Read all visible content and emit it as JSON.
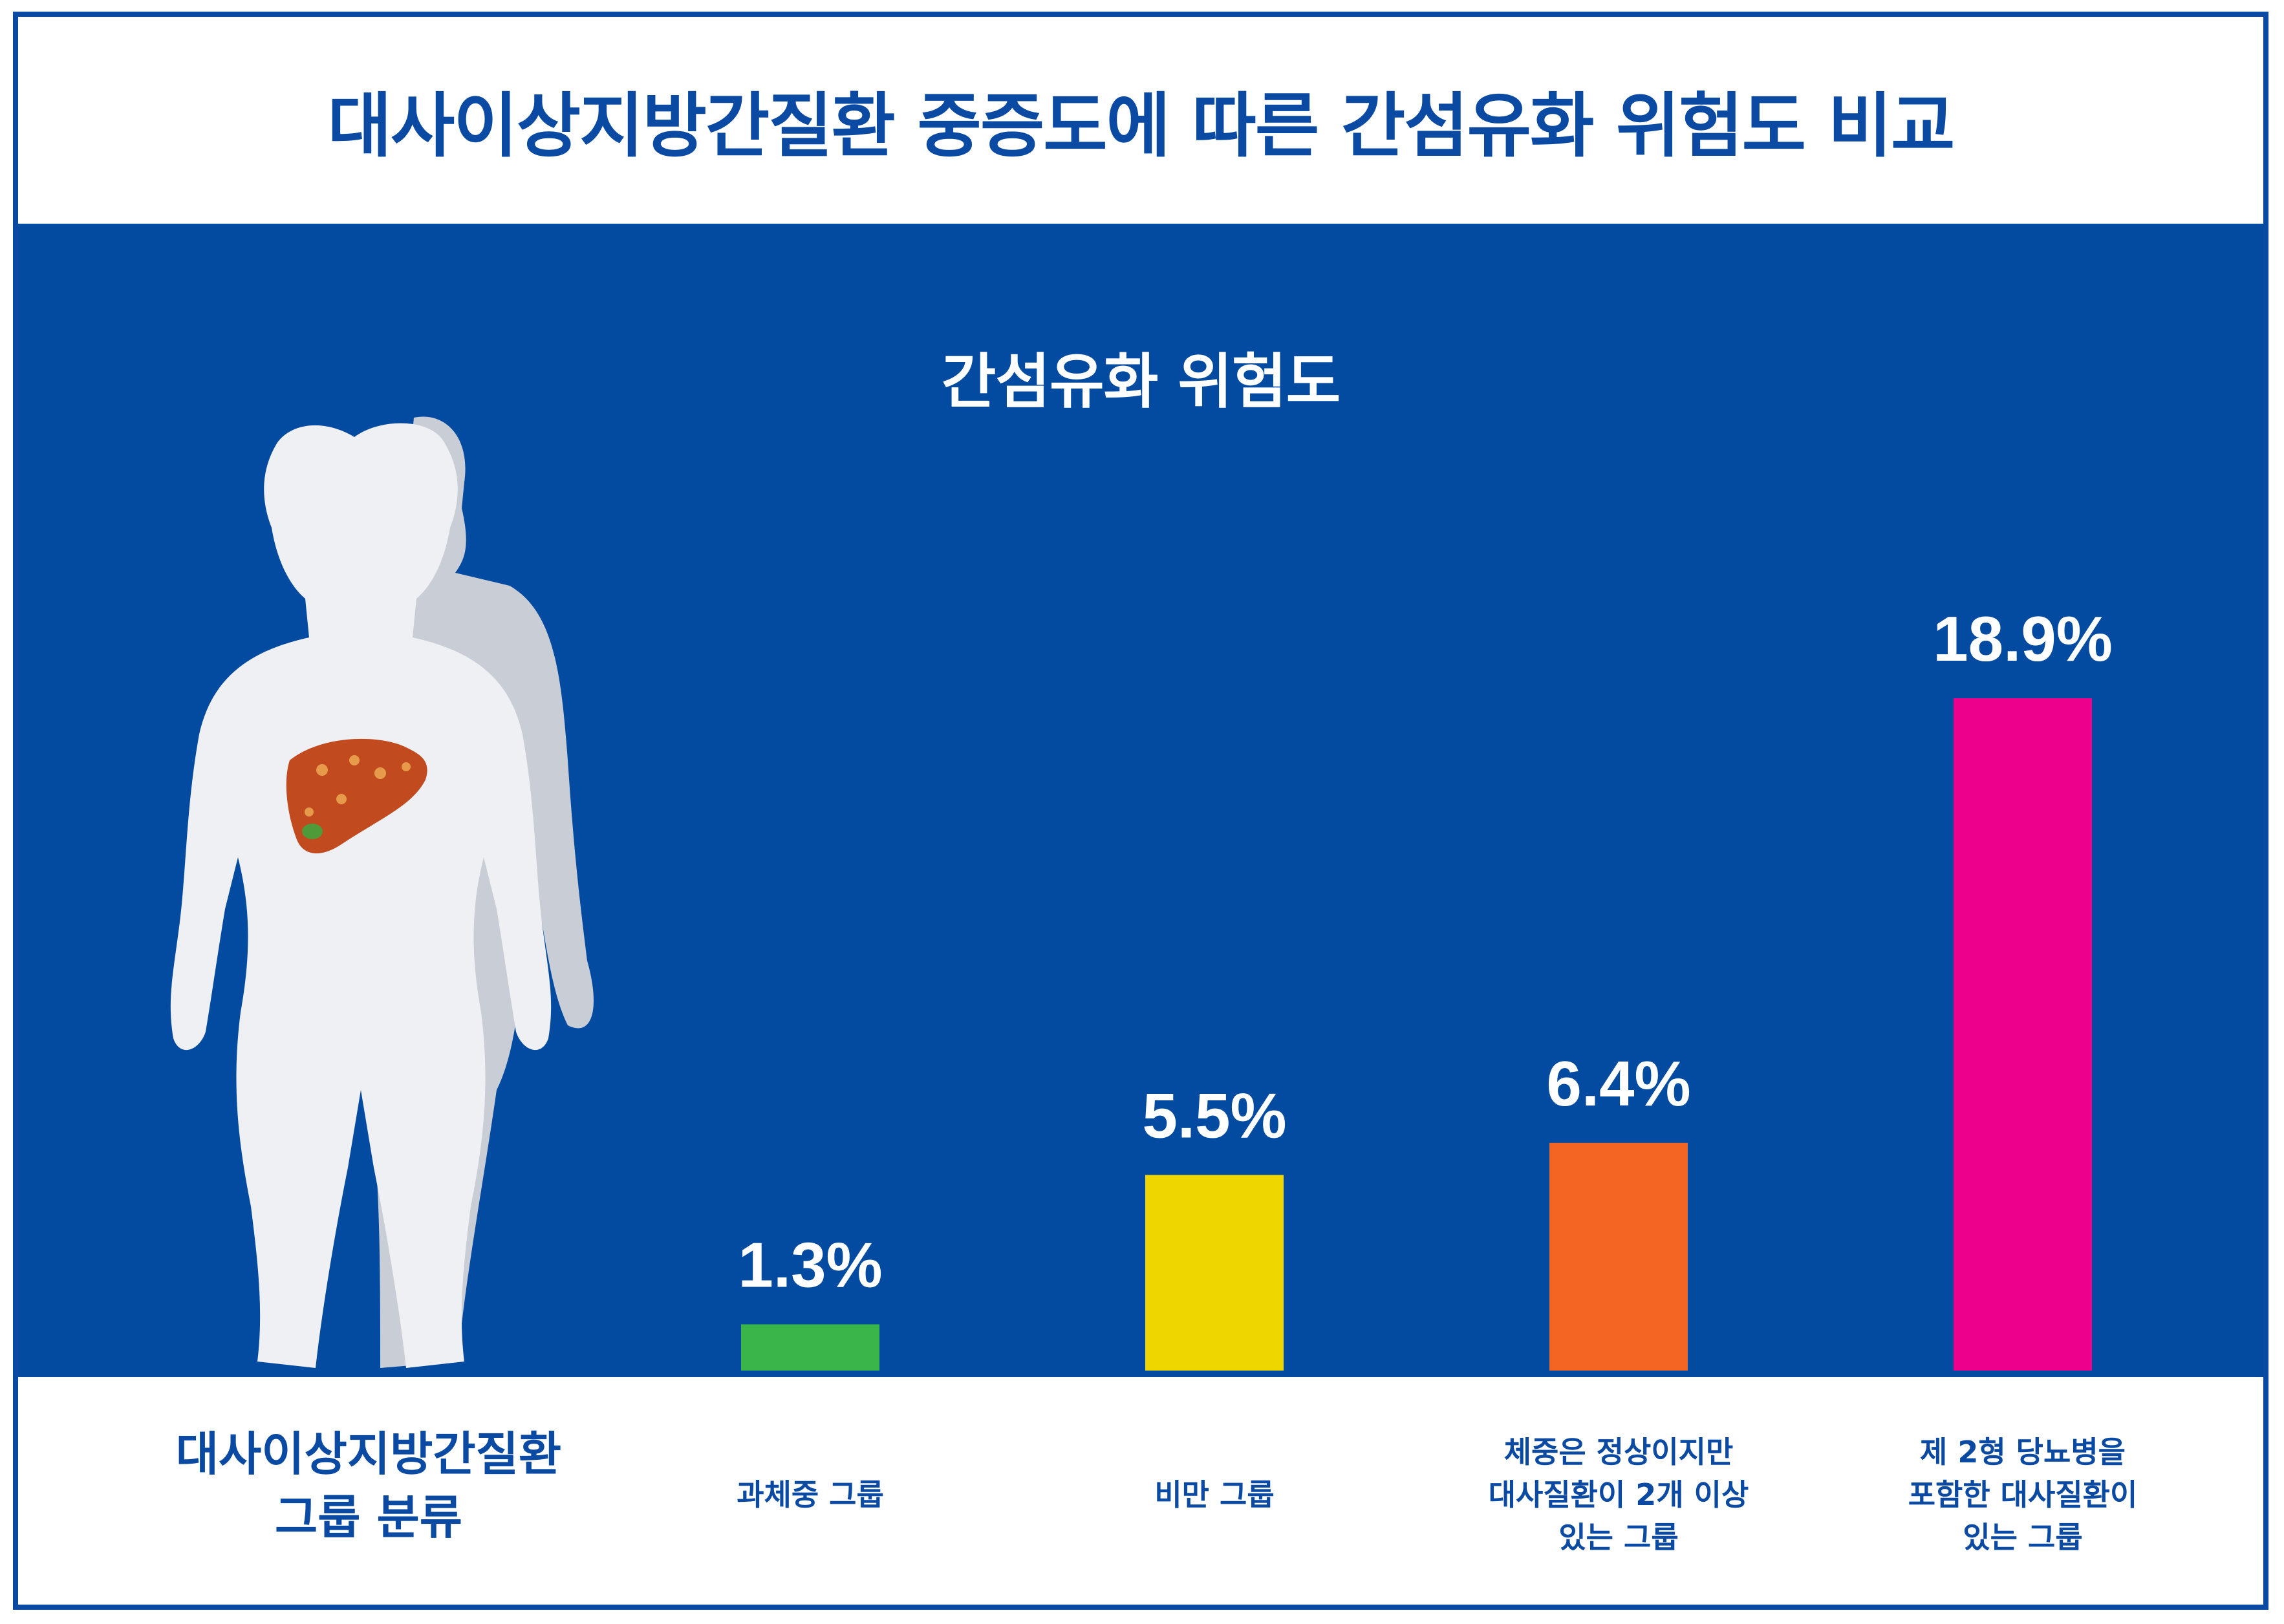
{
  "title": "대사이상지방간질환 중증도에 따른  간섬유화 위험도 비교",
  "group_axis_title_line1": "대사이상지방간질환",
  "group_axis_title_line2": "그룹 분류",
  "chart_data": {
    "type": "bar",
    "title": "간섬유화 위험도",
    "categories": [
      "과체중 그룹",
      "비만 그룹",
      "체중은 정상이지만\n대사질환이 2개 이상\n있는 그룹",
      "제 2형 당뇨병을\n포함한 대사질환이\n있는 그룹"
    ],
    "values": [
      1.3,
      5.5,
      6.4,
      18.9
    ],
    "value_labels": [
      "1.3%",
      "5.5%",
      "6.4%",
      "18.9%"
    ],
    "colors": [
      "#3ab54a",
      "#eed600",
      "#f26522",
      "#ec008c"
    ],
    "xlabel": "",
    "ylabel": ""
  }
}
